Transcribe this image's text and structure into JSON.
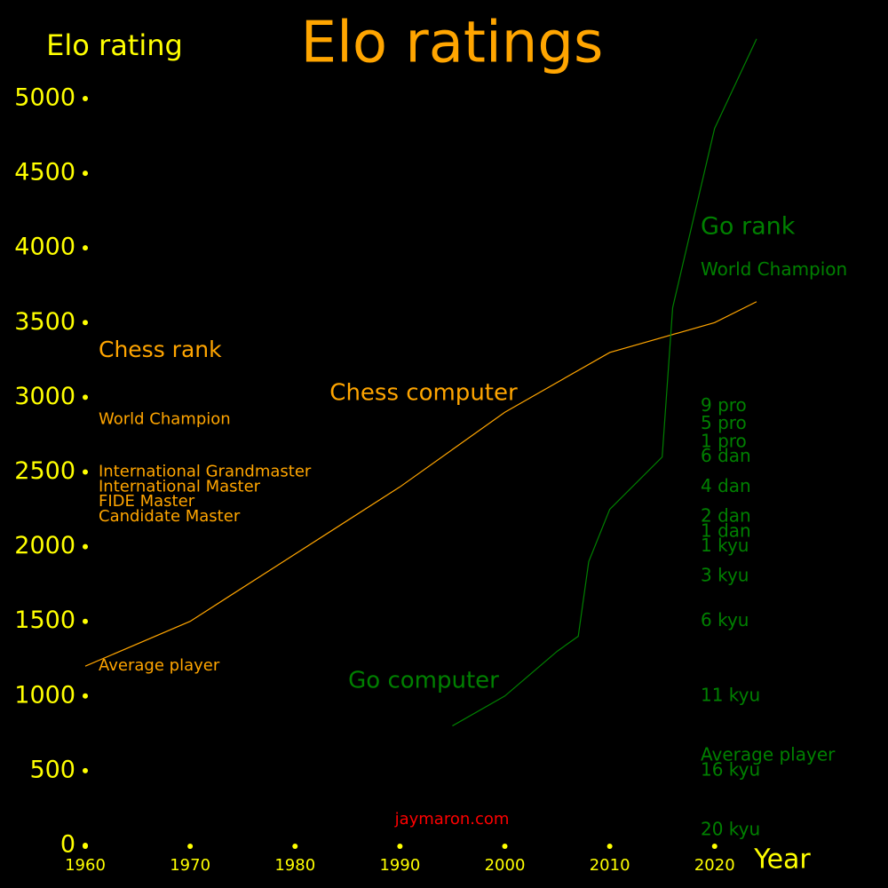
{
  "chart_data": {
    "type": "line",
    "title": "Elo ratings",
    "ylabel": "Elo rating",
    "xlabel": "Year",
    "credit": "jaymaron.com",
    "xlim": [
      1960,
      2024
    ],
    "ylim": [
      0,
      5400
    ],
    "xticks": [
      1960,
      1970,
      1980,
      1990,
      2000,
      2010,
      2020
    ],
    "yticks": [
      0,
      500,
      1000,
      1500,
      2000,
      2500,
      3000,
      3500,
      4000,
      4500,
      5000
    ],
    "tick_color": "#ffff00",
    "series": [
      {
        "name": "Chess computer",
        "color": "#ffa500",
        "x": [
          1960,
          1970,
          1990,
          2000,
          2010,
          2020,
          2024
        ],
        "values": [
          1200,
          1500,
          2400,
          2900,
          3300,
          3500,
          3640
        ]
      },
      {
        "name": "Go computer",
        "color": "#008000",
        "x": [
          1995,
          2000,
          2005,
          2007,
          2008,
          2010,
          2015,
          2016,
          2020,
          2024
        ],
        "values": [
          800,
          1000,
          1300,
          1400,
          1900,
          2250,
          2600,
          3600,
          4800,
          5400
        ]
      }
    ],
    "chess_rank_title": "Chess rank",
    "chess_ranks": [
      {
        "label": "World Champion",
        "value": 2850
      },
      {
        "label": "International Grandmaster",
        "value": 2500
      },
      {
        "label": "International Master",
        "value": 2400
      },
      {
        "label": "FIDE Master",
        "value": 2300
      },
      {
        "label": "Candidate Master",
        "value": 2200
      },
      {
        "label": "Average player",
        "value": 1200
      }
    ],
    "go_rank_title": "Go rank",
    "go_ranks": [
      {
        "label": "World Champion",
        "value": 3850
      },
      {
        "label": "9 pro",
        "value": 2940
      },
      {
        "label": "5 pro",
        "value": 2820
      },
      {
        "label": "1 pro",
        "value": 2700
      },
      {
        "label": "6 dan",
        "value": 2600
      },
      {
        "label": "4 dan",
        "value": 2400
      },
      {
        "label": "2 dan",
        "value": 2200
      },
      {
        "label": "1 dan",
        "value": 2100
      },
      {
        "label": "1 kyu",
        "value": 2000
      },
      {
        "label": "3 kyu",
        "value": 1800
      },
      {
        "label": "6 kyu",
        "value": 1500
      },
      {
        "label": "11 kyu",
        "value": 1000
      },
      {
        "label": "Average player",
        "value": 600
      },
      {
        "label": "16 kyu",
        "value": 500
      },
      {
        "label": "20 kyu",
        "value": 100
      }
    ]
  }
}
